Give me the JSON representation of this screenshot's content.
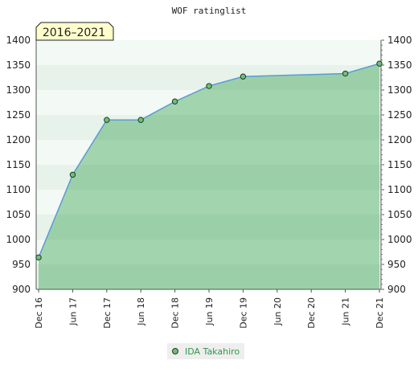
{
  "chart_data": {
    "type": "area",
    "title": "WOF ratinglist",
    "period": "2016–2021",
    "xlabel": "",
    "ylabel": "",
    "x_tick_labels": [
      "Dec 16",
      "Jun 17",
      "Dec 17",
      "Jun 18",
      "Dec 18",
      "Jun 19",
      "Dec 19",
      "Jun 20",
      "Dec 20",
      "Jun 21",
      "Dec 21"
    ],
    "ylim": [
      900,
      1400
    ],
    "y_ticks": [
      900,
      950,
      1000,
      1050,
      1100,
      1150,
      1200,
      1250,
      1300,
      1350,
      1400
    ],
    "series": [
      {
        "name": "IDA Takahiro",
        "x": [
          "Dec 16",
          "Jun 17",
          "Dec 17",
          "Jun 18",
          "Dec 18",
          "Jun 19",
          "Dec 19",
          "Jun 21",
          "Dec 21"
        ],
        "values": [
          964,
          1130,
          1240,
          1240,
          1277,
          1308,
          1327,
          1333,
          1353
        ]
      }
    ],
    "grid": true,
    "legend": "bottom-center",
    "colors": {
      "line": "#5b9bd5",
      "marker": "#6fbf7a",
      "marker_edge": "#1f3a24",
      "legend_text": "#2e9a46",
      "period_box": "#ffffcc"
    }
  }
}
